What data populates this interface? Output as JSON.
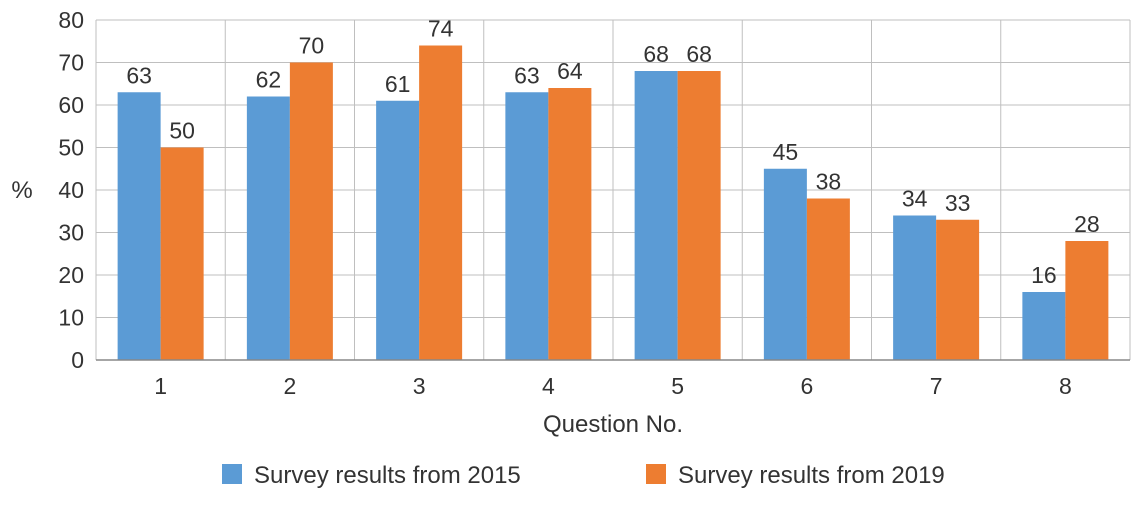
{
  "chart_data": {
    "type": "bar",
    "categories": [
      "1",
      "2",
      "3",
      "4",
      "5",
      "6",
      "7",
      "8"
    ],
    "series": [
      {
        "name": "Survey results from 2015",
        "values": [
          63,
          62,
          61,
          63,
          68,
          45,
          34,
          16
        ],
        "color": "#5b9bd5"
      },
      {
        "name": "Survey results from 2019",
        "values": [
          50,
          70,
          74,
          64,
          68,
          38,
          33,
          28
        ],
        "color": "#ed7d31"
      }
    ],
    "title": "",
    "xlabel": "Question No.",
    "ylabel": "%",
    "ylim": [
      0,
      80
    ],
    "yticks": [
      0,
      10,
      20,
      30,
      40,
      50,
      60,
      70,
      80
    ],
    "grid": true,
    "legend_position": "bottom"
  }
}
